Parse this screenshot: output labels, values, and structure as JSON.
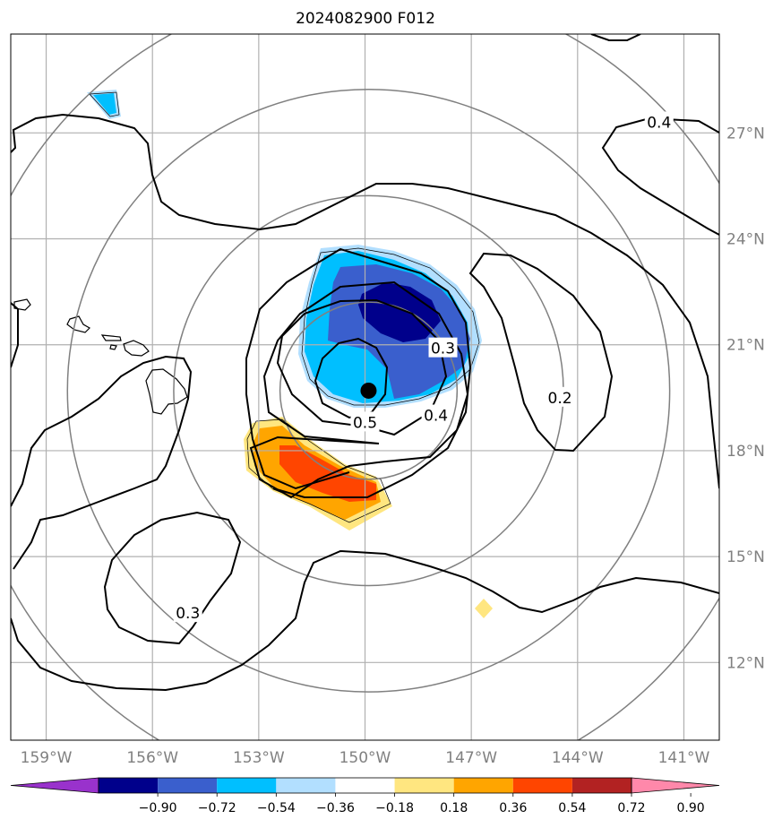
{
  "title": "2024082900 F012",
  "map": {
    "lon_range": [
      -160,
      -140
    ],
    "lat_range": [
      9.8,
      29.8
    ],
    "lon_ticks": [
      {
        "value": -159,
        "label": "159°W"
      },
      {
        "value": -156,
        "label": "156°W"
      },
      {
        "value": -153,
        "label": "153°W"
      },
      {
        "value": -150,
        "label": "150°W"
      },
      {
        "value": -147,
        "label": "147°W"
      },
      {
        "value": -144,
        "label": "144°W"
      },
      {
        "value": -141,
        "label": "141°W"
      }
    ],
    "lat_ticks": [
      {
        "value": 12,
        "label": "12°N"
      },
      {
        "value": 15,
        "label": "15°N"
      },
      {
        "value": 18,
        "label": "18°N"
      },
      {
        "value": 21,
        "label": "21°N"
      },
      {
        "value": 24,
        "label": "24°N"
      },
      {
        "value": 27,
        "label": "27°N"
      }
    ],
    "storm_center": {
      "lon": -149.9,
      "lat": 19.7
    },
    "range_rings_deg": [
      2.5,
      5.5,
      8.5,
      11.5
    ]
  },
  "contour_labels": [
    {
      "text": "0.4",
      "lon": -141.7,
      "lat": 27.3
    },
    {
      "text": "0.3",
      "lon": -147.8,
      "lat": 20.9
    },
    {
      "text": "0.2",
      "lon": -144.5,
      "lat": 19.5
    },
    {
      "text": "0.4",
      "lon": -148.0,
      "lat": 19.0
    },
    {
      "text": "0.5",
      "lon": -150.0,
      "lat": 18.8
    },
    {
      "text": "0.3",
      "lon": -155.0,
      "lat": 13.4
    }
  ],
  "colorbar": {
    "colors": [
      "#9932cc",
      "#00008b",
      "#3a5fcd",
      "#00bfff",
      "#b2dfff",
      "#ffffff",
      "#ffe680",
      "#ffa500",
      "#ff4500",
      "#b22222",
      "#ff88aa"
    ],
    "ticks": [
      "−0.90",
      "−0.72",
      "−0.54",
      "−0.36",
      "−0.18",
      "0.18",
      "0.36",
      "0.54",
      "0.72",
      "0.90"
    ]
  },
  "colors": {
    "grid": "#b0b0b0",
    "ring": "#808080",
    "contour": "#000000",
    "center_dot": "#000000"
  }
}
